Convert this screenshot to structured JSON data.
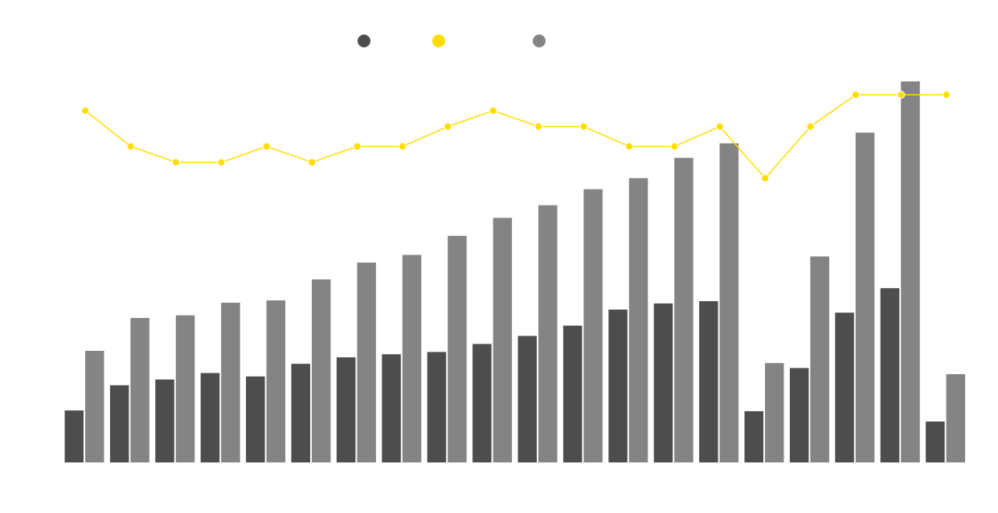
{
  "chart_data": {
    "type": "bar",
    "title": "",
    "xlabel": "",
    "ylabel": "",
    "grid": false,
    "legend_placement": "top-center",
    "categories": [
      "",
      "",
      "",
      "",
      "",
      "",
      "",
      "",
      "",
      "",
      "",
      "",
      "",
      "",
      "",
      "",
      "",
      "",
      "",
      ""
    ],
    "ylim": [
      0,
      100
    ],
    "line_ylim": [
      0,
      100
    ],
    "series": [
      {
        "name": "",
        "kind": "bar",
        "color": "#4d4d4d",
        "values": [
          13.6,
          20.2,
          21.7,
          23.4,
          22.5,
          25.8,
          27.5,
          28.3,
          28.9,
          31.0,
          33.1,
          35.8,
          40.0,
          41.6,
          42.2,
          13.4,
          24.7,
          39.2,
          45.6,
          10.7
        ]
      },
      {
        "name": "",
        "kind": "line",
        "color": "#ffdd00",
        "values": [
          92,
          83,
          79,
          79,
          83,
          79,
          83,
          83,
          88,
          92,
          88,
          88,
          83,
          83,
          88,
          75,
          88,
          96,
          96,
          96
        ]
      },
      {
        "name": "",
        "kind": "bar",
        "color": "#848484",
        "values": [
          29.2,
          37.8,
          38.5,
          41.8,
          42.4,
          47.9,
          52.3,
          54.3,
          59.3,
          64.0,
          67.3,
          71.5,
          74.4,
          79.7,
          83.5,
          26.0,
          53.9,
          86.3,
          99.7,
          23.1
        ]
      }
    ]
  }
}
